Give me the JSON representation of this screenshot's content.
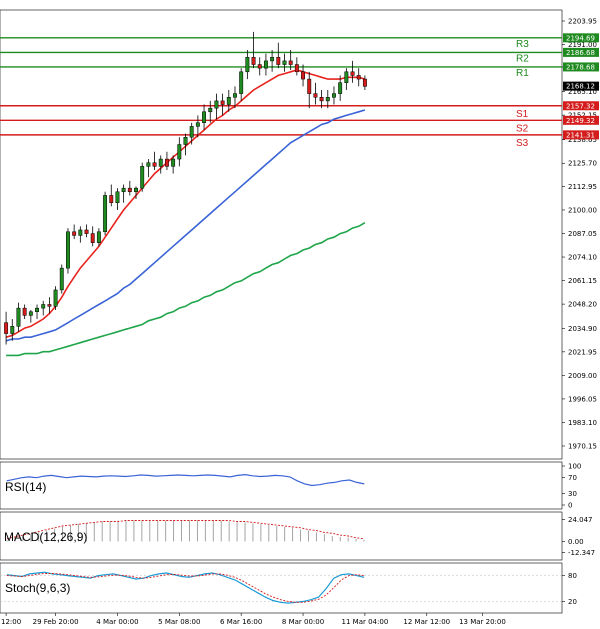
{
  "chart_data": {
    "type": "candlestick",
    "symbol_unit": "price",
    "ylim": [
      1963.0,
      2210.0
    ],
    "y_ticks": [
      "2203.95",
      "2191.00",
      "2178.65",
      "2165.10",
      "2152.15",
      "2138.65",
      "2125.70",
      "2112.95",
      "2100.00",
      "2087.05",
      "2074.10",
      "2061.15",
      "2048.20",
      "2034.90",
      "2021.95",
      "2009.00",
      "1996.05",
      "1983.10",
      "1970.15"
    ],
    "x_ticks": [
      {
        "label": "12:00",
        "index": 0
      },
      {
        "label": "29 Feb 20:00",
        "index": 8
      },
      {
        "label": "4 Mar 00:00",
        "index": 18
      },
      {
        "label": "5 Mar 08:00",
        "index": 28
      },
      {
        "label": "6 Mar 16:00",
        "index": 38
      },
      {
        "label": "8 Mar 00:00",
        "index": 48
      },
      {
        "label": "11 Mar 04:00",
        "index": 58
      },
      {
        "label": "12 Mar 12:00",
        "index": 68
      },
      {
        "label": "13 Mar 20:00",
        "index": 77
      }
    ],
    "candles": [
      [
        2038,
        2044,
        2026,
        2032
      ],
      [
        2032,
        2040,
        2028,
        2036
      ],
      [
        2036,
        2049,
        2033,
        2046
      ],
      [
        2046,
        2048,
        2040,
        2042
      ],
      [
        2042,
        2045,
        2038,
        2044
      ],
      [
        2044,
        2048,
        2040,
        2046
      ],
      [
        2046,
        2050,
        2042,
        2048
      ],
      [
        2048,
        2052,
        2043,
        2047
      ],
      [
        2047,
        2058,
        2045,
        2056
      ],
      [
        2056,
        2070,
        2054,
        2068
      ],
      [
        2068,
        2090,
        2065,
        2088
      ],
      [
        2088,
        2092,
        2084,
        2086
      ],
      [
        2086,
        2091,
        2082,
        2089
      ],
      [
        2089,
        2092,
        2085,
        2087
      ],
      [
        2087,
        2091,
        2080,
        2082
      ],
      [
        2082,
        2090,
        2080,
        2088
      ],
      [
        2088,
        2110,
        2086,
        2108
      ],
      [
        2108,
        2114,
        2102,
        2104
      ],
      [
        2104,
        2112,
        2100,
        2110
      ],
      [
        2110,
        2114,
        2104,
        2112
      ],
      [
        2112,
        2116,
        2108,
        2110
      ],
      [
        2110,
        2113,
        2106,
        2112
      ],
      [
        2112,
        2126,
        2110,
        2124
      ],
      [
        2124,
        2128,
        2118,
        2126
      ],
      [
        2126,
        2132,
        2122,
        2124
      ],
      [
        2124,
        2130,
        2120,
        2128
      ],
      [
        2128,
        2132,
        2122,
        2124
      ],
      [
        2124,
        2130,
        2120,
        2128
      ],
      [
        2128,
        2140,
        2124,
        2136
      ],
      [
        2136,
        2142,
        2130,
        2140
      ],
      [
        2140,
        2148,
        2136,
        2146
      ],
      [
        2146,
        2152,
        2140,
        2148
      ],
      [
        2148,
        2158,
        2144,
        2154
      ],
      [
        2154,
        2160,
        2148,
        2156
      ],
      [
        2156,
        2164,
        2150,
        2160
      ],
      [
        2160,
        2164,
        2152,
        2158
      ],
      [
        2158,
        2166,
        2154,
        2162
      ],
      [
        2162,
        2168,
        2156,
        2164
      ],
      [
        2164,
        2178,
        2160,
        2176
      ],
      [
        2176,
        2188,
        2172,
        2184
      ],
      [
        2184,
        2198,
        2178,
        2180
      ],
      [
        2180,
        2184,
        2174,
        2178
      ],
      [
        2178,
        2186,
        2174,
        2182
      ],
      [
        2182,
        2188,
        2176,
        2184
      ],
      [
        2184,
        2192,
        2178,
        2180
      ],
      [
        2180,
        2186,
        2176,
        2182
      ],
      [
        2182,
        2188,
        2177,
        2180
      ],
      [
        2180,
        2184,
        2174,
        2176
      ],
      [
        2176,
        2180,
        2168,
        2172
      ],
      [
        2172,
        2176,
        2156,
        2164
      ],
      [
        2164,
        2170,
        2158,
        2162
      ],
      [
        2162,
        2166,
        2156,
        2160
      ],
      [
        2160,
        2166,
        2156,
        2162
      ],
      [
        2162,
        2168,
        2158,
        2164
      ],
      [
        2164,
        2174,
        2160,
        2170
      ],
      [
        2170,
        2178,
        2166,
        2176
      ],
      [
        2176,
        2182,
        2170,
        2174
      ],
      [
        2174,
        2178,
        2168,
        2172
      ],
      [
        2172,
        2174,
        2166,
        2168
      ]
    ],
    "ma_fast_color": "#e8231d",
    "ma_mid_color": "#3a63d6",
    "ma_slow_color": "#1fa54a",
    "ma_fast": [
      2030,
      2031,
      2033,
      2035,
      2036,
      2038,
      2040,
      2043,
      2047,
      2052,
      2058,
      2063,
      2068,
      2072,
      2076,
      2080,
      2085,
      2090,
      2095,
      2100,
      2104,
      2108,
      2112,
      2116,
      2120,
      2123,
      2126,
      2129,
      2132,
      2135,
      2138,
      2141,
      2144,
      2147,
      2150,
      2152,
      2155,
      2157,
      2160,
      2163,
      2166,
      2168,
      2170,
      2172,
      2174,
      2175,
      2176,
      2177,
      2176,
      2175,
      2174,
      2173,
      2172,
      2172,
      2172,
      2173,
      2173,
      2173,
      2172
    ],
    "ma_mid": [
      2028,
      2029,
      2029,
      2030,
      2030,
      2031,
      2032,
      2033,
      2034,
      2036,
      2038,
      2040,
      2042,
      2044,
      2046,
      2048,
      2050,
      2052,
      2054,
      2057,
      2059,
      2062,
      2065,
      2068,
      2071,
      2074,
      2077,
      2080,
      2083,
      2086,
      2089,
      2092,
      2095,
      2098,
      2101,
      2104,
      2107,
      2110,
      2113,
      2116,
      2119,
      2122,
      2125,
      2128,
      2131,
      2134,
      2137,
      2139,
      2141,
      2143,
      2145,
      2147,
      2148,
      2150,
      2151,
      2152,
      2153,
      2154,
      2155
    ],
    "ma_slow": [
      2020,
      2020,
      2020,
      2021,
      2021,
      2021,
      2022,
      2022,
      2023,
      2024,
      2025,
      2026,
      2027,
      2028,
      2029,
      2030,
      2031,
      2032,
      2033,
      2034,
      2035,
      2036,
      2037,
      2039,
      2040,
      2041,
      2043,
      2044,
      2046,
      2047,
      2049,
      2050,
      2052,
      2053,
      2055,
      2056,
      2058,
      2060,
      2061,
      2063,
      2065,
      2066,
      2068,
      2070,
      2071,
      2073,
      2075,
      2076,
      2078,
      2079,
      2081,
      2082,
      2084,
      2085,
      2087,
      2088,
      2090,
      2091,
      2093
    ],
    "levels": [
      {
        "name": "R3",
        "value": 2194.69,
        "label": "2194.69",
        "color": "#1f8a1f"
      },
      {
        "name": "R2",
        "value": 2186.68,
        "label": "2186.68",
        "color": "#1f8a1f"
      },
      {
        "name": "R1",
        "value": 2178.68,
        "label": "2178.68",
        "color": "#1f8a1f"
      },
      {
        "name": "S1",
        "value": 2157.32,
        "label": "2157.32",
        "color": "#d41c1c"
      },
      {
        "name": "S2",
        "value": 2149.32,
        "label": "2149.32",
        "color": "#d41c1c"
      },
      {
        "name": "S3",
        "value": 2141.31,
        "label": "2141.31",
        "color": "#d41c1c"
      }
    ],
    "current_price": {
      "value": 2168.12,
      "label": "2168.12"
    },
    "rsi": {
      "label": "RSI(14)",
      "ylim": [
        0,
        100
      ],
      "ticks": [
        "100",
        "70",
        "30",
        "0"
      ],
      "values": [
        62,
        66,
        70,
        72,
        70,
        74,
        76,
        73,
        70,
        72,
        74,
        73,
        72,
        74,
        75,
        74,
        73,
        75,
        77,
        76,
        74,
        75,
        76,
        77,
        76,
        75,
        76,
        77,
        76,
        74,
        72,
        76,
        78,
        75,
        73,
        74,
        76,
        75,
        72,
        62,
        54,
        50,
        52,
        56,
        58,
        62,
        64,
        58,
        54
      ]
    },
    "macd": {
      "label": "MACD(12,26,9)",
      "ylim": [
        -16,
        28
      ],
      "ticks": [
        "24.047",
        "0.00",
        "-12.347"
      ],
      "hist": [
        2,
        4,
        6,
        8,
        10,
        12,
        14,
        16,
        18,
        19,
        20,
        21,
        22,
        22,
        23,
        23,
        23,
        23,
        23,
        23,
        23,
        23,
        23,
        23,
        23,
        23,
        23,
        23,
        22,
        22,
        21,
        20,
        19,
        18,
        17,
        16,
        15,
        13,
        12,
        10,
        8,
        6,
        5,
        4,
        3,
        2
      ],
      "signal": [
        3,
        5,
        7,
        9,
        11,
        13,
        15,
        17,
        18,
        19,
        20,
        21,
        22,
        22,
        22,
        23,
        23,
        23,
        23,
        23,
        23,
        23,
        23,
        23,
        23,
        23,
        23,
        23,
        23,
        22,
        22,
        21,
        20,
        19,
        18,
        17,
        16,
        15,
        13,
        12,
        10,
        9,
        7,
        6,
        4,
        3
      ]
    },
    "stoch": {
      "label": "Stoch(9,6,3)",
      "ylim": [
        0,
        100
      ],
      "ticks": [
        "80",
        "20"
      ],
      "k": [
        82,
        80,
        78,
        84,
        86,
        88,
        84,
        82,
        80,
        78,
        76,
        74,
        80,
        82,
        84,
        80,
        76,
        72,
        74,
        80,
        84,
        86,
        82,
        78,
        76,
        80,
        84,
        86,
        82,
        76,
        70,
        60,
        50,
        40,
        30,
        22,
        18,
        16,
        18,
        20,
        24,
        30,
        50,
        74,
        82,
        84,
        80,
        76
      ],
      "d": [
        80,
        79,
        78,
        80,
        83,
        85,
        85,
        84,
        82,
        80,
        78,
        76,
        77,
        79,
        81,
        81,
        79,
        76,
        74,
        76,
        79,
        82,
        83,
        81,
        79,
        79,
        81,
        84,
        84,
        81,
        76,
        68,
        58,
        48,
        38,
        30,
        24,
        20,
        18,
        18,
        21,
        25,
        35,
        52,
        70,
        80,
        82,
        80
      ]
    }
  }
}
